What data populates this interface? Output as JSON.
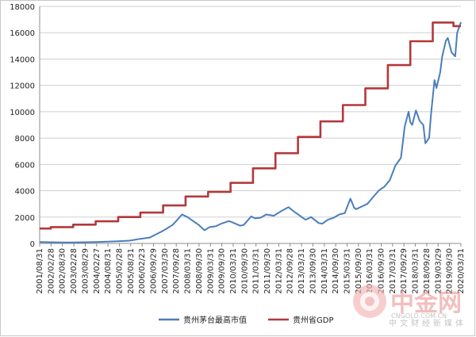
{
  "chart_data": {
    "type": "line",
    "title": "",
    "xlabel": "",
    "ylabel": "",
    "ylim": [
      0,
      18000
    ],
    "yticks": [
      0,
      2000,
      4000,
      6000,
      8000,
      10000,
      12000,
      14000,
      16000,
      18000
    ],
    "grid": true,
    "legend_position": "bottom",
    "x_range": [
      "2001/08/31",
      "2020/05/31"
    ],
    "x_tick_labels": [
      "2001/08/31",
      "2002/02/28",
      "2002/08/30",
      "2003/02/28",
      "2003/08/29",
      "2004/02/27",
      "2004/08/31",
      "2005/02/28",
      "2005/08/31",
      "2006/02/23",
      "2006/09/29",
      "2007/03/30",
      "2007/09/28",
      "2008/03/31",
      "2008/09/30",
      "2009/03/31",
      "2009/09/30",
      "2010/03/31",
      "2010/09/30",
      "2011/03/31",
      "2011/09/30",
      "2012/03/31",
      "2012/09/28",
      "2013/03/31",
      "2013/09/30",
      "2014/03/31",
      "2014/09/30",
      "2015/03/31",
      "2015/09/30",
      "2016/03/31",
      "2016/09/30",
      "2017/03/31",
      "2017/09/29",
      "2018/03/31",
      "2018/09/28",
      "2019/03/29",
      "2019/09/30",
      "2020/03/31"
    ],
    "series": [
      {
        "name": "贵州茅台最高市值",
        "color": "#4a7ebb",
        "type": "line",
        "points": [
          [
            "2001/08/31",
            100
          ],
          [
            "2002/02/28",
            90
          ],
          [
            "2002/08/30",
            80
          ],
          [
            "2003/02/28",
            70
          ],
          [
            "2003/08/29",
            90
          ],
          [
            "2004/02/27",
            110
          ],
          [
            "2004/08/31",
            140
          ],
          [
            "2005/02/28",
            170
          ],
          [
            "2005/08/31",
            210
          ],
          [
            "2006/02/23",
            350
          ],
          [
            "2006/07/31",
            450
          ],
          [
            "2006/09/29",
            600
          ],
          [
            "2007/01/31",
            900
          ],
          [
            "2007/03/30",
            1050
          ],
          [
            "2007/07/31",
            1400
          ],
          [
            "2007/09/28",
            1700
          ],
          [
            "2007/12/31",
            2200
          ],
          [
            "2008/03/31",
            2000
          ],
          [
            "2008/06/30",
            1700
          ],
          [
            "2008/09/30",
            1400
          ],
          [
            "2008/12/31",
            1000
          ],
          [
            "2009/03/31",
            1250
          ],
          [
            "2009/06/30",
            1300
          ],
          [
            "2009/09/30",
            1500
          ],
          [
            "2010/01/31",
            1700
          ],
          [
            "2010/03/31",
            1600
          ],
          [
            "2010/07/31",
            1350
          ],
          [
            "2010/09/30",
            1400
          ],
          [
            "2011/01/31",
            2050
          ],
          [
            "2011/03/31",
            1900
          ],
          [
            "2011/06/30",
            1950
          ],
          [
            "2011/09/30",
            2200
          ],
          [
            "2012/01/31",
            2100
          ],
          [
            "2012/05/31",
            2450
          ],
          [
            "2012/09/28",
            2750
          ],
          [
            "2012/12/31",
            2400
          ],
          [
            "2013/03/31",
            2100
          ],
          [
            "2013/06/30",
            1800
          ],
          [
            "2013/09/30",
            2000
          ],
          [
            "2014/01/31",
            1550
          ],
          [
            "2014/03/31",
            1500
          ],
          [
            "2014/06/30",
            1800
          ],
          [
            "2014/09/30",
            1950
          ],
          [
            "2014/12/31",
            2200
          ],
          [
            "2015/03/31",
            2300
          ],
          [
            "2015/06/30",
            3400
          ],
          [
            "2015/08/31",
            2700
          ],
          [
            "2015/09/30",
            2600
          ],
          [
            "2015/12/31",
            2800
          ],
          [
            "2016/03/31",
            3000
          ],
          [
            "2016/06/30",
            3500
          ],
          [
            "2016/09/30",
            4000
          ],
          [
            "2016/12/31",
            4300
          ],
          [
            "2017/03/31",
            4800
          ],
          [
            "2017/06/30",
            5900
          ],
          [
            "2017/09/29",
            6500
          ],
          [
            "2017/11/30",
            8900
          ],
          [
            "2018/01/31",
            10000
          ],
          [
            "2018/02/28",
            9200
          ],
          [
            "2018/03/31",
            9000
          ],
          [
            "2018/05/31",
            10100
          ],
          [
            "2018/07/31",
            9300
          ],
          [
            "2018/09/28",
            9000
          ],
          [
            "2018/10/31",
            7600
          ],
          [
            "2018/12/31",
            8000
          ],
          [
            "2019/01/31",
            9800
          ],
          [
            "2019/03/29",
            12400
          ],
          [
            "2019/04/30",
            11800
          ],
          [
            "2019/06/30",
            13000
          ],
          [
            "2019/07/31",
            14200
          ],
          [
            "2019/09/30",
            15400
          ],
          [
            "2019/10/31",
            15600
          ],
          [
            "2019/12/31",
            14500
          ],
          [
            "2020/02/28",
            14200
          ],
          [
            "2020/03/31",
            16000
          ],
          [
            "2020/05/31",
            16800
          ]
        ]
      },
      {
        "name": "贵州省GDP",
        "color": "#b3383b",
        "type": "step",
        "points": [
          [
            "2001/08/31",
            1133
          ],
          [
            "2002/02/28",
            1133
          ],
          [
            "2002/02/28",
            1243
          ],
          [
            "2003/02/28",
            1243
          ],
          [
            "2003/02/28",
            1426
          ],
          [
            "2004/02/27",
            1426
          ],
          [
            "2004/02/27",
            1678
          ],
          [
            "2005/02/28",
            1678
          ],
          [
            "2005/02/28",
            2005
          ],
          [
            "2006/02/23",
            2005
          ],
          [
            "2006/02/23",
            2339
          ],
          [
            "2007/02/28",
            2339
          ],
          [
            "2007/02/28",
            2884
          ],
          [
            "2008/02/28",
            2884
          ],
          [
            "2008/02/28",
            3562
          ],
          [
            "2009/02/28",
            3562
          ],
          [
            "2009/02/28",
            3913
          ],
          [
            "2010/02/28",
            3913
          ],
          [
            "2010/02/28",
            4602
          ],
          [
            "2011/02/28",
            4602
          ],
          [
            "2011/02/28",
            5702
          ],
          [
            "2012/02/28",
            5702
          ],
          [
            "2012/02/28",
            6852
          ],
          [
            "2013/02/28",
            6852
          ],
          [
            "2013/02/28",
            8087
          ],
          [
            "2014/02/28",
            8087
          ],
          [
            "2014/02/28",
            9266
          ],
          [
            "2015/02/28",
            9266
          ],
          [
            "2015/02/28",
            10503
          ],
          [
            "2016/02/28",
            10503
          ],
          [
            "2016/02/28",
            11777
          ],
          [
            "2017/02/28",
            11777
          ],
          [
            "2017/02/28",
            13541
          ],
          [
            "2018/02/28",
            13541
          ],
          [
            "2018/02/28",
            15353
          ],
          [
            "2019/02/28",
            15353
          ],
          [
            "2019/02/28",
            16769
          ],
          [
            "2020/01/31",
            16769
          ],
          [
            "2020/01/31",
            16500
          ],
          [
            "2020/05/31",
            16500
          ]
        ]
      }
    ]
  },
  "watermark": {
    "brand_cn": "中金网",
    "url": "CNGOLD.COM.CN",
    "tagline": "中文财经新媒体"
  }
}
